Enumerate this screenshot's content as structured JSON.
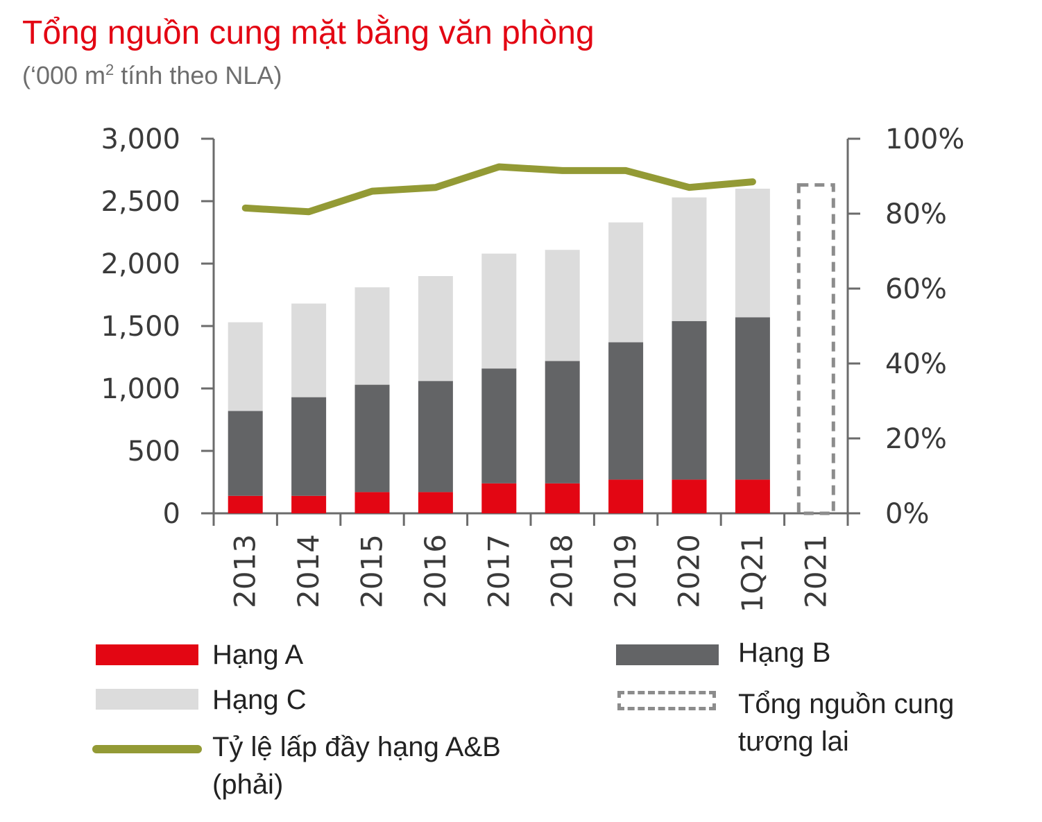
{
  "header": {
    "title": "Tổng nguồn cung mặt bằng văn phòng",
    "subtitle_pre": "(‘000 m",
    "subtitle_sup": "2",
    "subtitle_post": " tính theo NLA)"
  },
  "chart_data": {
    "type": "bar",
    "stacked": true,
    "categories": [
      "2013",
      "2014",
      "2015",
      "2016",
      "2017",
      "2018",
      "2019",
      "2020",
      "1Q21",
      "2021"
    ],
    "y_left": {
      "min": 0,
      "max": 3000,
      "ticks": [
        "0",
        "500",
        "1,000",
        "1,500",
        "2,000",
        "2,500",
        "3,000"
      ]
    },
    "y_right": {
      "min": 0,
      "max": 100,
      "ticks": [
        "0%",
        "20%",
        "40%",
        "60%",
        "80%",
        "100%"
      ]
    },
    "series": [
      {
        "name": "Hạng A",
        "color": "#e30613",
        "values": [
          140,
          140,
          170,
          170,
          240,
          240,
          270,
          270,
          270,
          null
        ]
      },
      {
        "name": "Hạng B",
        "color": "#636466",
        "values": [
          680,
          790,
          860,
          890,
          920,
          980,
          1100,
          1270,
          1300,
          null
        ]
      },
      {
        "name": "Hạng C",
        "color": "#dcdcdc",
        "values": [
          710,
          750,
          780,
          840,
          920,
          890,
          960,
          990,
          1030,
          null
        ]
      },
      {
        "name": "Tổng nguồn cung tương lai",
        "color": "#8c8c8c",
        "style": "dashed-outline",
        "values": [
          null,
          null,
          null,
          null,
          null,
          null,
          null,
          null,
          null,
          2630
        ]
      },
      {
        "name": "Tỷ lệ lấp đầy hạng A&B (phải)",
        "color": "#939a35",
        "type": "line",
        "axis": "right",
        "values": [
          81.5,
          80.5,
          86,
          87,
          92.5,
          91.5,
          91.5,
          87,
          88.5,
          null
        ]
      }
    ]
  },
  "legend": {
    "a": "Hạng A",
    "b": "Hạng B",
    "c": "Hạng C",
    "future_1": "Tổng nguồn cung",
    "future_2": "tương lai",
    "line_1": "Tỷ lệ lấp đầy hạng A&B",
    "line_2": "(phải)"
  }
}
